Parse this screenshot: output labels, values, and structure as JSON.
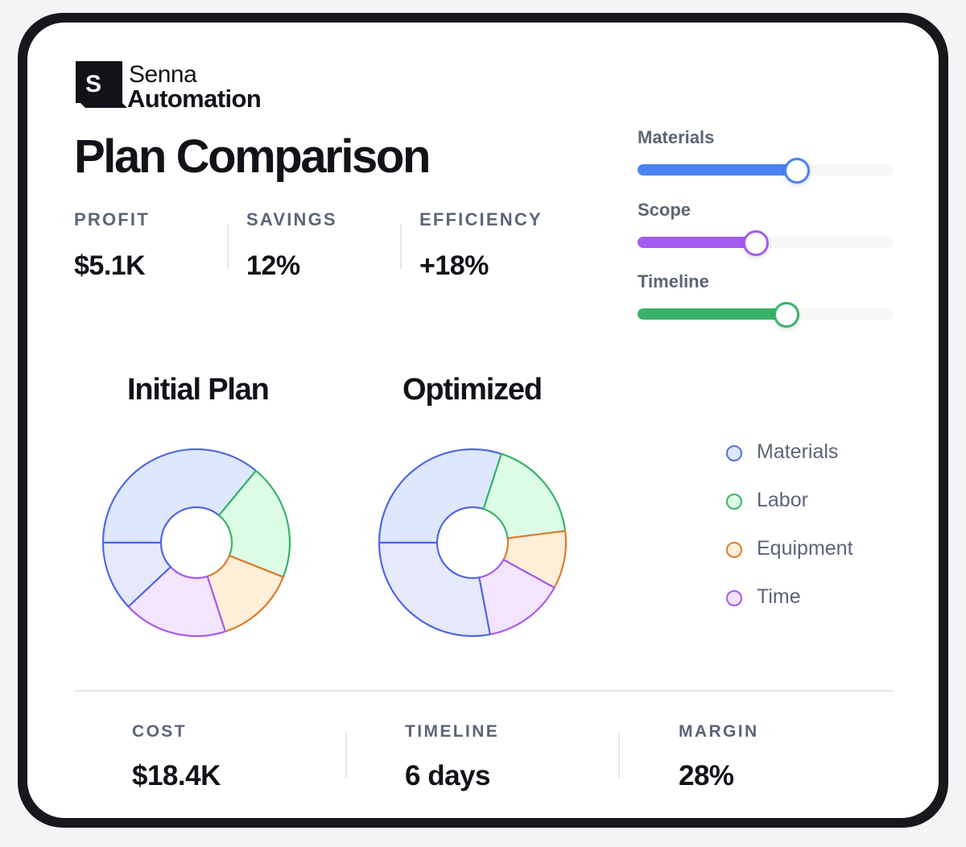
{
  "brand": {
    "line1": "Senna",
    "line2": "Automation",
    "mark_letter": "S"
  },
  "title": "Plan Comparison",
  "stats": [
    {
      "label": "PROFIT",
      "value": "$5.1K"
    },
    {
      "label": "SAVINGS",
      "value": "12%"
    },
    {
      "label": "EFFICIENCY",
      "value": "+18%"
    }
  ],
  "sliders": [
    {
      "label": "Materials",
      "value": 0.62,
      "color": "#4c82f0"
    },
    {
      "label": "Scope",
      "value": 0.46,
      "color": "#a45cf0"
    },
    {
      "label": "Timeline",
      "value": 0.58,
      "color": "#3bb26a"
    }
  ],
  "legend": [
    {
      "label": "Materials",
      "color": "#5b6ee0",
      "fill": "#dde8fc"
    },
    {
      "label": "Labor",
      "color": "#3bb26a",
      "fill": "#dcfce6"
    },
    {
      "label": "Equipment",
      "color": "#e07b2e",
      "fill": "#ffefd8"
    },
    {
      "label": "Time",
      "color": "#a45cf0",
      "fill": "#f3e5fd"
    }
  ],
  "chart_data": [
    {
      "type": "pie",
      "title": "Initial Plan",
      "slices": [
        {
          "label": "Materials",
          "value": 36,
          "stroke": "#4f66e8",
          "fill": "#dde8fc"
        },
        {
          "label": "Labor",
          "value": 20,
          "stroke": "#3bb26a",
          "fill": "#dcfce6"
        },
        {
          "label": "Equipment",
          "value": 14,
          "stroke": "#e07b2e",
          "fill": "#ffefd8"
        },
        {
          "label": "Time",
          "value": 18,
          "stroke": "#a45cf0",
          "fill": "#f3e5fd"
        },
        {
          "label": "",
          "value": 12,
          "stroke": "#4f66e8",
          "fill": "#e6e9fb"
        }
      ]
    },
    {
      "type": "pie",
      "title": "Optimized",
      "slices": [
        {
          "label": "Materials",
          "value": 30,
          "stroke": "#4f66e8",
          "fill": "#dde8fc"
        },
        {
          "label": "Labor",
          "value": 18,
          "stroke": "#3bb26a",
          "fill": "#dcfce6"
        },
        {
          "label": "Equipment",
          "value": 10,
          "stroke": "#e07b2e",
          "fill": "#ffefd8"
        },
        {
          "label": "Time",
          "value": 14,
          "stroke": "#a45cf0",
          "fill": "#f3e5fd"
        },
        {
          "label": "",
          "value": 28,
          "stroke": "#4f66e8",
          "fill": "#e6e9fb"
        }
      ]
    }
  ],
  "bottom_stats": [
    {
      "label": "COST",
      "value": "$18.4K"
    },
    {
      "label": "TIMELINE",
      "value": "6 days"
    },
    {
      "label": "MARGIN",
      "value": "28%"
    }
  ]
}
